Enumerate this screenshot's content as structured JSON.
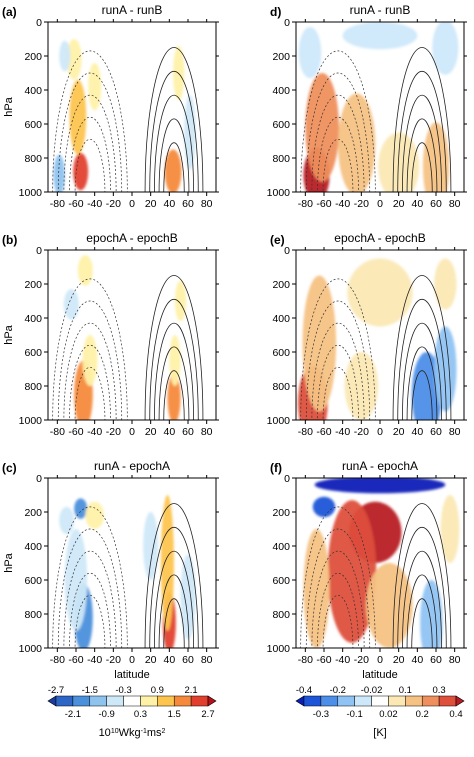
{
  "chart_data": {
    "type": "heatmap",
    "panels": [
      {
        "id": "a",
        "label": "(a)",
        "title": "runA - runB",
        "colorbar": "left",
        "ylabel": "hPa",
        "blobs": [
          {
            "lat": -55,
            "p": 880,
            "w": 8,
            "h": 110,
            "lvl": 2.5
          },
          {
            "lat": -58,
            "p": 560,
            "w": 9,
            "h": 220,
            "lvl": 1.2
          },
          {
            "lat": -62,
            "p": 220,
            "w": 8,
            "h": 120,
            "lvl": 0.6
          },
          {
            "lat": -40,
            "p": 380,
            "w": 7,
            "h": 140,
            "lvl": 0.6
          },
          {
            "lat": -72,
            "p": 200,
            "w": 6,
            "h": 90,
            "lvl": -0.6
          },
          {
            "lat": -78,
            "p": 900,
            "w": 6,
            "h": 120,
            "lvl": -1.0
          },
          {
            "lat": 44,
            "p": 880,
            "w": 9,
            "h": 130,
            "lvl": 1.8
          },
          {
            "lat": 50,
            "p": 300,
            "w": 6,
            "h": 160,
            "lvl": 0.6
          },
          {
            "lat": 62,
            "p": 650,
            "w": 6,
            "h": 220,
            "lvl": -0.5
          }
        ]
      },
      {
        "id": "d",
        "label": "d)",
        "title": "runA - runB",
        "colorbar": "right",
        "ylabel": "",
        "blobs": [
          {
            "lat": -68,
            "p": 900,
            "w": 14,
            "h": 160,
            "lvl": 0.45
          },
          {
            "lat": -62,
            "p": 620,
            "w": 18,
            "h": 320,
            "lvl": 0.28
          },
          {
            "lat": -25,
            "p": 720,
            "w": 20,
            "h": 300,
            "lvl": 0.12
          },
          {
            "lat": 20,
            "p": 850,
            "w": 22,
            "h": 200,
            "lvl": 0.1
          },
          {
            "lat": 60,
            "p": 850,
            "w": 14,
            "h": 260,
            "lvl": 0.15
          },
          {
            "lat": -75,
            "p": 180,
            "w": 12,
            "h": 150,
            "lvl": -0.08
          },
          {
            "lat": 0,
            "p": 80,
            "w": 40,
            "h": 80,
            "lvl": -0.05
          },
          {
            "lat": 70,
            "p": 150,
            "w": 14,
            "h": 160,
            "lvl": -0.06
          }
        ]
      },
      {
        "id": "b",
        "label": "(b)",
        "title": "epochA - epochB",
        "colorbar": "left",
        "ylabel": "hPa",
        "blobs": [
          {
            "lat": -52,
            "p": 850,
            "w": 10,
            "h": 200,
            "lvl": 1.6
          },
          {
            "lat": -45,
            "p": 650,
            "w": 8,
            "h": 150,
            "lvl": 0.9
          },
          {
            "lat": -50,
            "p": 120,
            "w": 8,
            "h": 90,
            "lvl": 0.5
          },
          {
            "lat": -65,
            "p": 320,
            "w": 8,
            "h": 90,
            "lvl": -0.4
          },
          {
            "lat": 45,
            "p": 870,
            "w": 7,
            "h": 150,
            "lvl": 2.1
          },
          {
            "lat": 46,
            "p": 650,
            "w": 6,
            "h": 150,
            "lvl": 0.9
          },
          {
            "lat": 52,
            "p": 300,
            "w": 6,
            "h": 120,
            "lvl": 0.4
          }
        ]
      },
      {
        "id": "e",
        "label": "(e)",
        "title": "epochA - epochB",
        "colorbar": "right",
        "ylabel": "",
        "blobs": [
          {
            "lat": -72,
            "p": 900,
            "w": 16,
            "h": 220,
            "lvl": 0.35
          },
          {
            "lat": -65,
            "p": 550,
            "w": 18,
            "h": 400,
            "lvl": 0.2
          },
          {
            "lat": -20,
            "p": 800,
            "w": 18,
            "h": 200,
            "lvl": 0.05
          },
          {
            "lat": 50,
            "p": 850,
            "w": 16,
            "h": 250,
            "lvl": -0.2
          },
          {
            "lat": 70,
            "p": 700,
            "w": 12,
            "h": 250,
            "lvl": -0.12
          },
          {
            "lat": 70,
            "p": 200,
            "w": 12,
            "h": 150,
            "lvl": 0.1
          },
          {
            "lat": 0,
            "p": 250,
            "w": 35,
            "h": 200,
            "lvl": 0.06
          }
        ]
      },
      {
        "id": "c",
        "label": "(c)",
        "title": "runA - epochA",
        "colorbar": "left",
        "ylabel": "hPa",
        "blobs": [
          {
            "lat": -52,
            "p": 820,
            "w": 10,
            "h": 200,
            "lvl": -1.6
          },
          {
            "lat": -60,
            "p": 600,
            "w": 12,
            "h": 300,
            "lvl": -0.8
          },
          {
            "lat": -55,
            "p": 180,
            "w": 7,
            "h": 60,
            "lvl": -2.0
          },
          {
            "lat": -40,
            "p": 220,
            "w": 10,
            "h": 80,
            "lvl": 0.5
          },
          {
            "lat": -70,
            "p": 250,
            "w": 8,
            "h": 80,
            "lvl": -0.4
          },
          {
            "lat": 40,
            "p": 850,
            "w": 7,
            "h": 180,
            "lvl": 2.4
          },
          {
            "lat": 38,
            "p": 500,
            "w": 7,
            "h": 400,
            "lvl": 1.2
          },
          {
            "lat": 60,
            "p": 700,
            "w": 8,
            "h": 250,
            "lvl": -0.6
          },
          {
            "lat": 20,
            "p": 400,
            "w": 8,
            "h": 200,
            "lvl": -0.4
          }
        ]
      },
      {
        "id": "f",
        "label": "(f)",
        "title": "runA - epochA",
        "colorbar": "right",
        "ylabel": "",
        "blobs": [
          {
            "lat": 0,
            "p": 40,
            "w": 70,
            "h": 50,
            "lvl": -0.45
          },
          {
            "lat": -60,
            "p": 170,
            "w": 12,
            "h": 60,
            "lvl": -0.35
          },
          {
            "lat": -5,
            "p": 320,
            "w": 28,
            "h": 180,
            "lvl": 0.42
          },
          {
            "lat": -30,
            "p": 550,
            "w": 26,
            "h": 420,
            "lvl": 0.32
          },
          {
            "lat": -68,
            "p": 650,
            "w": 14,
            "h": 350,
            "lvl": 0.2
          },
          {
            "lat": 10,
            "p": 750,
            "w": 25,
            "h": 250,
            "lvl": 0.15
          },
          {
            "lat": 55,
            "p": 850,
            "w": 12,
            "h": 250,
            "lvl": -0.18
          },
          {
            "lat": 75,
            "p": 300,
            "w": 10,
            "h": 200,
            "lvl": 0.1
          }
        ]
      }
    ],
    "xlabel": "latitude",
    "x_ticks": [
      "-80",
      "-60",
      "-40",
      "-20",
      "0",
      "20",
      "40",
      "60",
      "80"
    ],
    "y_ticks": [
      "0",
      "200",
      "400",
      "600",
      "800",
      "1000"
    ],
    "xlim": [
      -90,
      90
    ],
    "ylim": [
      0,
      1000
    ],
    "colorbars": {
      "left": {
        "label": "10^10 Wkg^-1ms^2",
        "label_parts": [
          "10",
          "10",
          "Wkg",
          "-1",
          "ms",
          "2"
        ],
        "ticks_top": [
          "-2.7",
          "-1.5",
          "-0.3",
          "0.9",
          "2.1"
        ],
        "ticks_bottom": [
          "-2.1",
          "-0.9",
          "0.3",
          "1.5",
          "2.7"
        ],
        "levels": [
          -2.7,
          -2.1,
          -1.5,
          -0.9,
          -0.3,
          0.3,
          0.9,
          1.5,
          2.1,
          2.7
        ],
        "colors": [
          "#1a3c9e",
          "#2d66c4",
          "#4b90db",
          "#8ec3ee",
          "#cfe8f8",
          "#ffffff",
          "#fff1a8",
          "#fdc54f",
          "#f68a3c",
          "#e2402f",
          "#b5121b"
        ]
      },
      "right": {
        "label": "[K]",
        "ticks_top": [
          "-0.4",
          "-0.2",
          "-0.02",
          "0.1",
          "0.3"
        ],
        "ticks_bottom": [
          "-0.3",
          "-0.1",
          "0.02",
          "0.2",
          "0.4"
        ],
        "levels": [
          -0.4,
          -0.3,
          -0.2,
          -0.1,
          -0.02,
          0.02,
          0.1,
          0.2,
          0.3,
          0.4
        ],
        "colors": [
          "#0a1fb8",
          "#1e55d8",
          "#4d8ee8",
          "#8fc3f3",
          "#cde8fb",
          "#ffffff",
          "#fbe8b4",
          "#f6c283",
          "#ef8f5d",
          "#de4f3c",
          "#b81c22"
        ]
      }
    },
    "legend": "bottom",
    "grid": false
  }
}
